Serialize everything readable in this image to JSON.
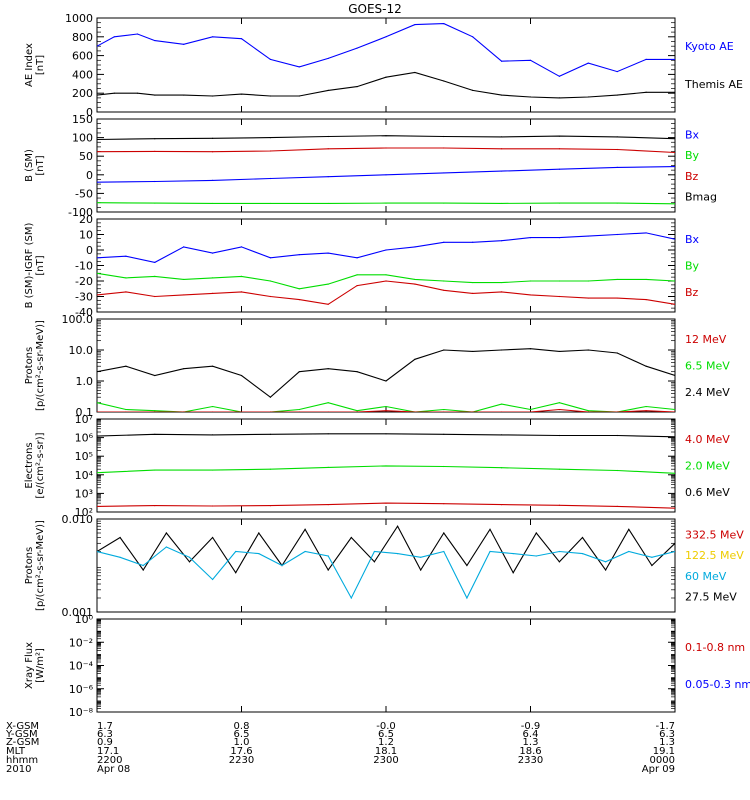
{
  "title": "GOES-12",
  "colors": {
    "black": "#000000",
    "blue": "#0000ff",
    "green": "#00dd00",
    "red": "#cc0000",
    "cyan": "#00aadd",
    "yellow": "#eecc00"
  },
  "chart_data": [
    {
      "id": "ae",
      "type": "line",
      "ylabel": "AE Index [nT]",
      "scale": "linear",
      "ylim": [
        0,
        1000
      ],
      "ticks": [
        "0",
        "200",
        "400",
        "600",
        "800",
        "1000"
      ],
      "legend": [
        {
          "label": "Kyoto AE",
          "color": "blue"
        },
        {
          "label": "Themis AE",
          "color": "black"
        }
      ],
      "x": [
        0,
        0.3,
        0.7,
        1.0,
        1.5,
        2.0,
        2.5,
        3.0,
        3.5,
        4.0,
        4.5,
        5.0,
        5.5,
        6.0,
        6.5,
        7.0,
        7.5,
        8.0,
        8.5,
        9.0,
        9.5,
        10.0
      ],
      "series": [
        {
          "name": "Kyoto AE",
          "color": "blue",
          "values": [
            700,
            800,
            830,
            760,
            720,
            800,
            780,
            560,
            480,
            570,
            680,
            800,
            930,
            940,
            800,
            540,
            550,
            380,
            520,
            430,
            560,
            560
          ]
        },
        {
          "name": "Themis AE",
          "color": "black",
          "values": [
            180,
            200,
            200,
            180,
            180,
            170,
            190,
            170,
            170,
            230,
            270,
            370,
            420,
            330,
            230,
            180,
            160,
            150,
            160,
            180,
            210,
            210
          ]
        }
      ]
    },
    {
      "id": "bsm",
      "type": "line",
      "ylabel": "B (SM) [nT]",
      "scale": "linear",
      "ylim": [
        -100,
        150
      ],
      "ticks": [
        "-100",
        "-50",
        "0",
        "50",
        "100",
        "150"
      ],
      "legend": [
        {
          "label": "Bx",
          "color": "blue"
        },
        {
          "label": "By",
          "color": "green"
        },
        {
          "label": "Bz",
          "color": "red"
        },
        {
          "label": "Bmag",
          "color": "black"
        }
      ],
      "x": [
        0,
        1,
        2,
        3,
        4,
        5,
        6,
        7,
        8,
        9,
        10
      ],
      "series": [
        {
          "name": "Bx",
          "color": "blue",
          "values": [
            -20,
            -18,
            -15,
            -10,
            -5,
            0,
            5,
            10,
            15,
            20,
            22
          ]
        },
        {
          "name": "By",
          "color": "green",
          "values": [
            -75,
            -76,
            -77,
            -77,
            -77,
            -76,
            -76,
            -77,
            -76,
            -76,
            -78
          ]
        },
        {
          "name": "Bz",
          "color": "red",
          "values": [
            62,
            63,
            62,
            64,
            70,
            72,
            72,
            70,
            70,
            68,
            60
          ]
        },
        {
          "name": "Bmag",
          "color": "black",
          "values": [
            95,
            97,
            98,
            100,
            103,
            105,
            103,
            102,
            104,
            102,
            97
          ]
        }
      ]
    },
    {
      "id": "bdiff",
      "type": "line",
      "ylabel": "B (SM)-IGRF (SM) [nT]",
      "scale": "linear",
      "ylim": [
        -40,
        20
      ],
      "ticks": [
        "-40",
        "-30",
        "-20",
        "-10",
        "0",
        "10",
        "20"
      ],
      "legend": [
        {
          "label": "Bx",
          "color": "blue"
        },
        {
          "label": "By",
          "color": "green"
        },
        {
          "label": "Bz",
          "color": "red"
        }
      ],
      "x": [
        0,
        0.5,
        1.0,
        1.5,
        2.0,
        2.5,
        3.0,
        3.5,
        4.0,
        4.5,
        5.0,
        5.5,
        6.0,
        6.5,
        7.0,
        7.5,
        8.0,
        8.5,
        9.0,
        9.5,
        10.0
      ],
      "series": [
        {
          "name": "Bx",
          "color": "blue",
          "values": [
            -5,
            -4,
            -8,
            2,
            -2,
            2,
            -5,
            -3,
            -2,
            -5,
            0,
            2,
            5,
            5,
            6,
            8,
            8,
            9,
            10,
            11,
            7
          ]
        },
        {
          "name": "By",
          "color": "green",
          "values": [
            -15,
            -18,
            -17,
            -19,
            -18,
            -17,
            -20,
            -25,
            -22,
            -16,
            -16,
            -19,
            -20,
            -21,
            -21,
            -20,
            -20,
            -20,
            -19,
            -19,
            -20
          ]
        },
        {
          "name": "Bz",
          "color": "red",
          "values": [
            -29,
            -27,
            -30,
            -29,
            -28,
            -27,
            -30,
            -32,
            -35,
            -23,
            -20,
            -22,
            -26,
            -28,
            -27,
            -29,
            -30,
            -31,
            -31,
            -32,
            -35
          ]
        }
      ]
    },
    {
      "id": "protons",
      "type": "line",
      "ylabel": "Protons [p/(cm²-s-sr-MeV)]",
      "scale": "log",
      "ylim": [
        0.1,
        100
      ],
      "ticks": [
        "0.1",
        "1.0",
        "10.0",
        "100.0"
      ],
      "legend": [
        {
          "label": "12 MeV",
          "color": "red"
        },
        {
          "label": "6.5 MeV",
          "color": "green"
        },
        {
          "label": "2.4 MeV",
          "color": "black"
        }
      ],
      "x": [
        0,
        0.5,
        1.0,
        1.5,
        2.0,
        2.5,
        3.0,
        3.5,
        4.0,
        4.5,
        5.0,
        5.5,
        6.0,
        6.5,
        7.0,
        7.5,
        8.0,
        8.5,
        9.0,
        9.5,
        10.0
      ],
      "series": [
        {
          "name": "2.4 MeV",
          "color": "black",
          "values": [
            2.0,
            3.0,
            1.5,
            2.5,
            3.0,
            1.5,
            0.3,
            2.0,
            2.5,
            2.0,
            1.0,
            5.0,
            10.0,
            9.0,
            10.0,
            11.0,
            9.0,
            10.0,
            8.0,
            3.0,
            1.5
          ]
        },
        {
          "name": "6.5 MeV",
          "color": "green",
          "values": [
            0.2,
            0.12,
            0.11,
            0.1,
            0.15,
            0.1,
            0.1,
            0.12,
            0.2,
            0.11,
            0.15,
            0.1,
            0.12,
            0.1,
            0.18,
            0.12,
            0.2,
            0.11,
            0.1,
            0.15,
            0.12
          ]
        },
        {
          "name": "12 MeV",
          "color": "red",
          "values": [
            0.1,
            0.1,
            0.1,
            0.1,
            0.1,
            0.1,
            0.1,
            0.1,
            0.1,
            0.1,
            0.11,
            0.1,
            0.1,
            0.1,
            0.1,
            0.1,
            0.12,
            0.1,
            0.1,
            0.11,
            0.1
          ]
        }
      ]
    },
    {
      "id": "electrons",
      "type": "line",
      "ylabel": "Electrons [e/(cm²-s-sr)]",
      "scale": "log",
      "ylim": [
        100,
        10000000
      ],
      "ticks": [
        "10²",
        "10³",
        "10⁴",
        "10⁵",
        "10⁶",
        "10⁷"
      ],
      "legend": [
        {
          "label": "4.0 MeV",
          "color": "red"
        },
        {
          "label": "2.0 MeV",
          "color": "green"
        },
        {
          "label": "0.6 MeV",
          "color": "black"
        }
      ],
      "x": [
        0,
        1,
        2,
        3,
        4,
        5,
        6,
        7,
        8,
        9,
        10
      ],
      "series": [
        {
          "name": "0.6 MeV",
          "color": "black",
          "values": [
            1200000,
            1500000,
            1400000,
            1500000,
            1600000,
            1600000,
            1500000,
            1400000,
            1300000,
            1300000,
            1100000
          ]
        },
        {
          "name": "2.0 MeV",
          "color": "green",
          "values": [
            13000,
            18000,
            18000,
            20000,
            25000,
            30000,
            28000,
            24000,
            20000,
            17000,
            12000
          ]
        },
        {
          "name": "4.0 MeV",
          "color": "red",
          "values": [
            200,
            220,
            210,
            220,
            250,
            300,
            280,
            250,
            230,
            200,
            160
          ]
        }
      ]
    },
    {
      "id": "hiprotons",
      "type": "line",
      "ylabel": "Protons [p/(cm²-s-sr-MeV)]",
      "scale": "log",
      "ylim": [
        0.001,
        0.1
      ],
      "ticks": [
        "0.001",
        "0.010"
      ],
      "legend": [
        {
          "label": "332.5 MeV",
          "color": "red"
        },
        {
          "label": "122.5 MeV",
          "color": "yellow"
        },
        {
          "label": "60 MeV",
          "color": "cyan"
        },
        {
          "label": "27.5 MeV",
          "color": "black"
        }
      ],
      "x": [
        0,
        0.4,
        0.8,
        1.2,
        1.6,
        2.0,
        2.4,
        2.8,
        3.2,
        3.6,
        4.0,
        4.4,
        4.8,
        5.2,
        5.6,
        6.0,
        6.4,
        6.8,
        7.2,
        7.6,
        8.0,
        8.4,
        8.8,
        9.2,
        9.6,
        10.0
      ],
      "series": [
        {
          "name": "27.5 MeV",
          "color": "black",
          "values": [
            0.02,
            0.04,
            0.008,
            0.05,
            0.012,
            0.04,
            0.007,
            0.05,
            0.01,
            0.06,
            0.008,
            0.04,
            0.012,
            0.07,
            0.008,
            0.05,
            0.01,
            0.06,
            0.007,
            0.05,
            0.012,
            0.04,
            0.008,
            0.06,
            0.01,
            0.03
          ]
        },
        {
          "name": "60 MeV",
          "color": "cyan",
          "values": [
            0.02,
            0.015,
            0.01,
            0.025,
            0.015,
            0.005,
            0.02,
            0.018,
            0.01,
            0.02,
            0.016,
            0.002,
            0.02,
            0.018,
            0.015,
            0.02,
            0.002,
            0.02,
            0.018,
            0.016,
            0.02,
            0.018,
            0.012,
            0.02,
            0.015,
            0.02
          ]
        }
      ]
    },
    {
      "id": "xray",
      "type": "line",
      "ylabel": "Xray Flux [W/m²]",
      "scale": "log",
      "ylim": [
        1e-08,
        1
      ],
      "ticks": [
        "10⁻⁸",
        "10⁻⁶",
        "10⁻⁴",
        "10⁻²",
        "10⁰"
      ],
      "legend": [
        {
          "label": "0.1-0.8 nm",
          "color": "red"
        },
        {
          "label": "0.05-0.3 nm",
          "color": "blue"
        }
      ],
      "x": [],
      "series": []
    }
  ],
  "footer": {
    "labels": [
      "X-GSM",
      "Y-GSM",
      "Z-GSM",
      "MLT",
      "hhmm",
      "2010"
    ],
    "columns": [
      [
        "1.7",
        "6.3",
        "0.9",
        "17.1",
        "2200",
        "Apr 08"
      ],
      [
        "0.8",
        "6.5",
        "1.0",
        "17.6",
        "2230",
        ""
      ],
      [
        "-0.0",
        "6.5",
        "1.2",
        "18.1",
        "2300",
        ""
      ],
      [
        "-0.9",
        "6.4",
        "1.3",
        "18.6",
        "2330",
        ""
      ],
      [
        "-1.7",
        "6.3",
        "1.3",
        "19.1",
        "0000",
        "Apr 09"
      ]
    ]
  }
}
